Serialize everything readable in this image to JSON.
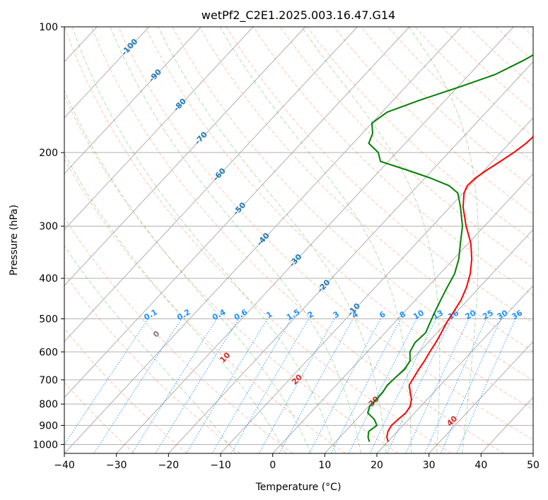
{
  "chart_data": {
    "type": "line",
    "subtype": "skew-t log-p sounding",
    "title": "wetPf2_C2E1.2025.003.16.47.G14",
    "xlabel": "Temperature (°C)",
    "ylabel": "Pressure (hPa)",
    "xlim": [
      -40,
      50
    ],
    "ylim": [
      1050,
      100
    ],
    "y_scale": "log",
    "grid": true,
    "x_ticks": [
      -40,
      -30,
      -20,
      -10,
      0,
      10,
      20,
      30,
      40,
      50
    ],
    "x_tick_labels": [
      "−40",
      "−30",
      "−20",
      "−10",
      "0",
      "10",
      "20",
      "30",
      "40",
      "50"
    ],
    "y_ticks": [
      100,
      200,
      300,
      400,
      500,
      600,
      700,
      800,
      900,
      1000
    ],
    "y_tick_labels": [
      "100",
      "200",
      "300",
      "400",
      "500",
      "600",
      "700",
      "800",
      "900",
      "1000"
    ],
    "series": [
      {
        "role": "temperature",
        "color": "#ff0000",
        "pressure": [
          985,
          960,
          930,
          900,
          870,
          840,
          810,
          780,
          750,
          720,
          690,
          660,
          630,
          600,
          570,
          540,
          510,
          480,
          450,
          420,
          390,
          360,
          330,
          300,
          270,
          250,
          240,
          230,
          220,
          210,
          200,
          190,
          180,
          170,
          160,
          150,
          140,
          130,
          120,
          110,
          100
        ],
        "values": [
          20.1,
          19.0,
          18.2,
          17.8,
          18.0,
          18.3,
          18.0,
          17.0,
          15.5,
          14.0,
          13.5,
          13.0,
          12.6,
          12.0,
          11.5,
          10.8,
          10.0,
          9.4,
          8.7,
          7.5,
          5.8,
          3.5,
          0.5,
          -3.5,
          -7.5,
          -9.8,
          -10.5,
          -10.3,
          -9.5,
          -8.5,
          -7.5,
          -6.8,
          -6.5,
          -7.0,
          -8.5,
          -10.2,
          -12.0,
          -13.2,
          -14.5,
          -16.6,
          -19.0
        ]
      },
      {
        "role": "dewpoint",
        "color": "#008000",
        "pressure": [
          985,
          960,
          930,
          900,
          870,
          840,
          810,
          780,
          750,
          720,
          690,
          660,
          630,
          600,
          570,
          540,
          510,
          480,
          450,
          420,
          390,
          360,
          330,
          300,
          270,
          250,
          240,
          230,
          220,
          210,
          200,
          190,
          180,
          170,
          160,
          150,
          140,
          130,
          120,
          110,
          100
        ],
        "values": [
          16.5,
          15.4,
          14.5,
          15.0,
          13.4,
          11.0,
          10.2,
          10.3,
          10.2,
          9.8,
          10.0,
          10.3,
          9.8,
          8.2,
          7.5,
          7.8,
          6.8,
          5.8,
          4.8,
          3.8,
          2.8,
          1.0,
          -1.5,
          -4.2,
          -8.0,
          -11.0,
          -14.0,
          -19.0,
          -25.0,
          -31.5,
          -33.5,
          -37.0,
          -38.0,
          -40.0,
          -39.0,
          -35.0,
          -30.0,
          -25.0,
          -22.0,
          -19.5,
          -17.5
        ]
      }
    ],
    "isotherm_labels": [
      "-100",
      "-90",
      "-80",
      "-70",
      "-60",
      "-50",
      "-40",
      "-30",
      "-20",
      "-10"
    ],
    "mixing_ratio_labels": [
      "0.1",
      "0.2",
      "0.4",
      "0.6",
      "1",
      "1.5",
      "2",
      "3",
      "4",
      "6",
      "8",
      "10",
      "13",
      "16",
      "20",
      "25",
      "30",
      "36"
    ],
    "dry_adiabat_labels": [
      "0",
      "10",
      "20",
      "30",
      "40"
    ]
  },
  "colors": {
    "temperature": "#ff0000",
    "dewpoint": "#008000",
    "isotherm_label": "#1f77b4",
    "mixing_ratio": "#1e90ff",
    "dry_adiabat": "#ff7f50",
    "moist_adiabat": "#2ca02c",
    "dry_adiabat_label": "#d62728"
  }
}
